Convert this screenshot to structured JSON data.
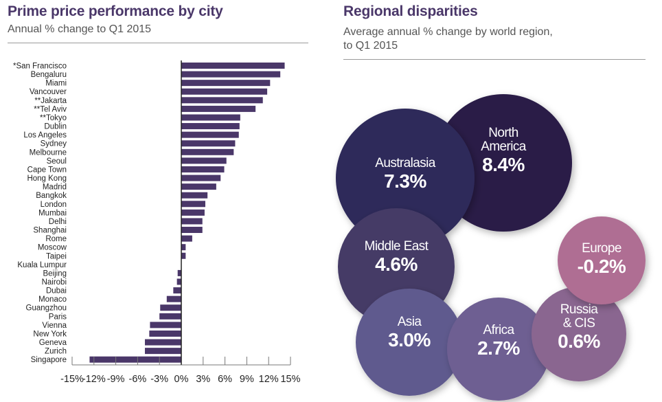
{
  "left_panel": {
    "title": "Prime price performance by city",
    "subtitle": "Annual % change to Q1 2015"
  },
  "right_panel": {
    "title": "Regional disparities",
    "subtitle_line1": "Average annual % change by world region,",
    "subtitle_line2": "to Q1 2015"
  },
  "chart_data": [
    {
      "type": "bar",
      "orientation": "horizontal",
      "title": "Prime price performance by city",
      "subtitle": "Annual % change to Q1 2015",
      "xlabel": "",
      "ylabel": "",
      "xlim": [
        -15,
        15
      ],
      "grid": false,
      "bar_color": "#4a3769",
      "tick_labels": [
        "-15%",
        "-12%",
        "-9%",
        "-6%",
        "-3%",
        "0%",
        "3%",
        "6%",
        "9%",
        "12%",
        "15%"
      ],
      "tick_values": [
        -15,
        -12,
        -9,
        -6,
        -3,
        0,
        3,
        6,
        9,
        12,
        15
      ],
      "categories": [
        "*San Francisco",
        "Bengaluru",
        "Miami",
        "Vancouver",
        "**Jakarta",
        "**Tel Aviv",
        "**Tokyo",
        "Dublin",
        "Los Angeles",
        "Sydney",
        "Melbourne",
        "Seoul",
        "Cape Town",
        "Hong Kong",
        "Madrid",
        "Bangkok",
        "London",
        "Mumbai",
        "Delhi",
        "Shanghai",
        "Rome",
        "Moscow",
        "Taipei",
        "Kuala Lumpur",
        "Beijing",
        "Nairobi",
        "Dubai",
        "Monaco",
        "Guangzhou",
        "Paris",
        "Vienna",
        "New York",
        "Geneva",
        "Zurich",
        "Singapore"
      ],
      "values": [
        14.2,
        13.6,
        12.2,
        11.8,
        11.2,
        10.2,
        8.1,
        8.0,
        7.9,
        7.4,
        7.2,
        6.2,
        5.9,
        5.4,
        4.8,
        3.6,
        3.3,
        3.2,
        2.9,
        2.9,
        1.5,
        0.6,
        0.6,
        0.0,
        -0.5,
        -0.6,
        -1.1,
        -2.0,
        -2.9,
        -3.0,
        -4.3,
        -4.4,
        -5.0,
        -5.0,
        -12.6
      ]
    },
    {
      "type": "bubble",
      "title": "Regional disparities",
      "subtitle": "Average annual % change by world region, to Q1 2015",
      "bubbles": [
        {
          "name_lines": [
            "North",
            "America"
          ],
          "value": 8.4,
          "label": "8.4%",
          "color": "#2a1d47"
        },
        {
          "name_lines": [
            "Australasia"
          ],
          "value": 7.3,
          "label": "7.3%",
          "color": "#2e2a5a"
        },
        {
          "name_lines": [
            "Middle East"
          ],
          "value": 4.6,
          "label": "4.6%",
          "color": "#443a66"
        },
        {
          "name_lines": [
            "Asia"
          ],
          "value": 3.0,
          "label": "3.0%",
          "color": "#5e5a8e"
        },
        {
          "name_lines": [
            "Africa"
          ],
          "value": 2.7,
          "label": "2.7%",
          "color": "#6e5e92"
        },
        {
          "name_lines": [
            "Russia",
            "& CIS"
          ],
          "value": 0.6,
          "label": "0.6%",
          "color": "#8a6690"
        },
        {
          "name_lines": [
            "Europe"
          ],
          "value": -0.2,
          "label": "-0.2%",
          "color": "#af6e93"
        }
      ]
    }
  ]
}
